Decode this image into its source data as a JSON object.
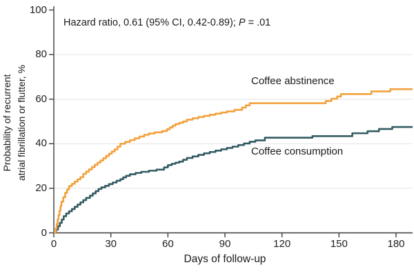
{
  "annotation": {
    "prefix": "Hazard ratio, 0.61 (95% CI, 0.42-0.89); ",
    "p": "P",
    "suffix": " = .01"
  },
  "chart_data": {
    "type": "line",
    "subtype": "kaplan-meier-step",
    "title": "",
    "xlabel": "Days of follow-up",
    "ylabel_lines": [
      "Probability of recurrent",
      "atrial fibrillation or flutter, %"
    ],
    "xlim": [
      0,
      180
    ],
    "ylim": [
      0,
      100
    ],
    "x_ticks": [
      0,
      30,
      60,
      90,
      120,
      150,
      180
    ],
    "y_ticks": [
      0,
      20,
      40,
      60,
      80,
      100
    ],
    "grid": "horizontal gridlines at 20, 40, 60, 80",
    "legend_position": "inline labels beside curves",
    "annotation": "Hazard ratio, 0.61 (95% CI, 0.42-0.89); P = .01",
    "colors": {
      "grid": "#E4E4E4",
      "axis": "#3C3C3C",
      "text": "#1A1A1A"
    },
    "series": [
      {
        "name": "Coffee abstinence",
        "color": "#F2A13C",
        "x_unit": "days",
        "y_unit": "percent",
        "points": [
          [
            0,
            0
          ],
          [
            1,
            2
          ],
          [
            1.5,
            4
          ],
          [
            2,
            6
          ],
          [
            2.5,
            8
          ],
          [
            3,
            10
          ],
          [
            3.5,
            12
          ],
          [
            4,
            14
          ],
          [
            5,
            16
          ],
          [
            6,
            18
          ],
          [
            7,
            19.5
          ],
          [
            8,
            21
          ],
          [
            9.5,
            22
          ],
          [
            11,
            23
          ],
          [
            12.5,
            24
          ],
          [
            14,
            25
          ],
          [
            15.5,
            26.5
          ],
          [
            17,
            27.5
          ],
          [
            18.5,
            28.5
          ],
          [
            20,
            29.5
          ],
          [
            21.5,
            30.5
          ],
          [
            23,
            31.5
          ],
          [
            24.5,
            32.5
          ],
          [
            26,
            33.5
          ],
          [
            27.5,
            34.5
          ],
          [
            29,
            35.5
          ],
          [
            30.5,
            36.5
          ],
          [
            32,
            37.5
          ],
          [
            33.5,
            38.7
          ],
          [
            35,
            40
          ],
          [
            37.5,
            40.8
          ],
          [
            40,
            41.6
          ],
          [
            42.5,
            42.4
          ],
          [
            45,
            43.2
          ],
          [
            47.5,
            44
          ],
          [
            50,
            44.6
          ],
          [
            53,
            45.1
          ],
          [
            57,
            45.7
          ],
          [
            59.5,
            46.5
          ],
          [
            61,
            47.3
          ],
          [
            62.5,
            48.1
          ],
          [
            64,
            48.8
          ],
          [
            66,
            49.4
          ],
          [
            68,
            50
          ],
          [
            70,
            50.8
          ],
          [
            73,
            51.4
          ],
          [
            76,
            52
          ],
          [
            79,
            52.5
          ],
          [
            82,
            53
          ],
          [
            85,
            53.5
          ],
          [
            88,
            54
          ],
          [
            91,
            54.5
          ],
          [
            95,
            55.2
          ],
          [
            99,
            56.2
          ],
          [
            101,
            57.2
          ],
          [
            103,
            58.2
          ],
          [
            143,
            59.2
          ],
          [
            146,
            60.2
          ],
          [
            149,
            61.2
          ],
          [
            151,
            62.3
          ],
          [
            167,
            63.5
          ],
          [
            177,
            64.5
          ]
        ]
      },
      {
        "name": "Coffee consumption",
        "color": "#325A62",
        "x_unit": "days",
        "y_unit": "percent",
        "points": [
          [
            0,
            0
          ],
          [
            1.2,
            1.5
          ],
          [
            2.2,
            3
          ],
          [
            3.2,
            4.5
          ],
          [
            4.2,
            6
          ],
          [
            5.2,
            7.5
          ],
          [
            6.5,
            8.7
          ],
          [
            8,
            9.7
          ],
          [
            9.5,
            10.7
          ],
          [
            11,
            11.7
          ],
          [
            12.5,
            12.7
          ],
          [
            14,
            13.7
          ],
          [
            15.5,
            14.7
          ],
          [
            17,
            15.7
          ],
          [
            19,
            16.7
          ],
          [
            20.5,
            17.7
          ],
          [
            22,
            18.7
          ],
          [
            23.5,
            19.7
          ],
          [
            25,
            20.4
          ],
          [
            27,
            21.1
          ],
          [
            29,
            21.9
          ],
          [
            31,
            22.6
          ],
          [
            33,
            23.4
          ],
          [
            35,
            24.1
          ],
          [
            36.5,
            24.9
          ],
          [
            38,
            25.6
          ],
          [
            40,
            26.3
          ],
          [
            43,
            26.9
          ],
          [
            46,
            27.4
          ],
          [
            50,
            27.9
          ],
          [
            54,
            28.4
          ],
          [
            58,
            29.4
          ],
          [
            60,
            30.4
          ],
          [
            62,
            31
          ],
          [
            64,
            31.5
          ],
          [
            66,
            32
          ],
          [
            68,
            32.8
          ],
          [
            70,
            33.6
          ],
          [
            73,
            34.3
          ],
          [
            76,
            35
          ],
          [
            79,
            35.7
          ],
          [
            82,
            36.3
          ],
          [
            85,
            36.9
          ],
          [
            88,
            37.5
          ],
          [
            91,
            38.1
          ],
          [
            94,
            38.7
          ],
          [
            97,
            39.4
          ],
          [
            100,
            40.1
          ],
          [
            103,
            40.9
          ],
          [
            106,
            41.5
          ],
          [
            111,
            42.7
          ],
          [
            136,
            43.4
          ],
          [
            157,
            44.7
          ],
          [
            165,
            45.6
          ],
          [
            171,
            46.6
          ],
          [
            178,
            47.5
          ]
        ]
      }
    ]
  }
}
